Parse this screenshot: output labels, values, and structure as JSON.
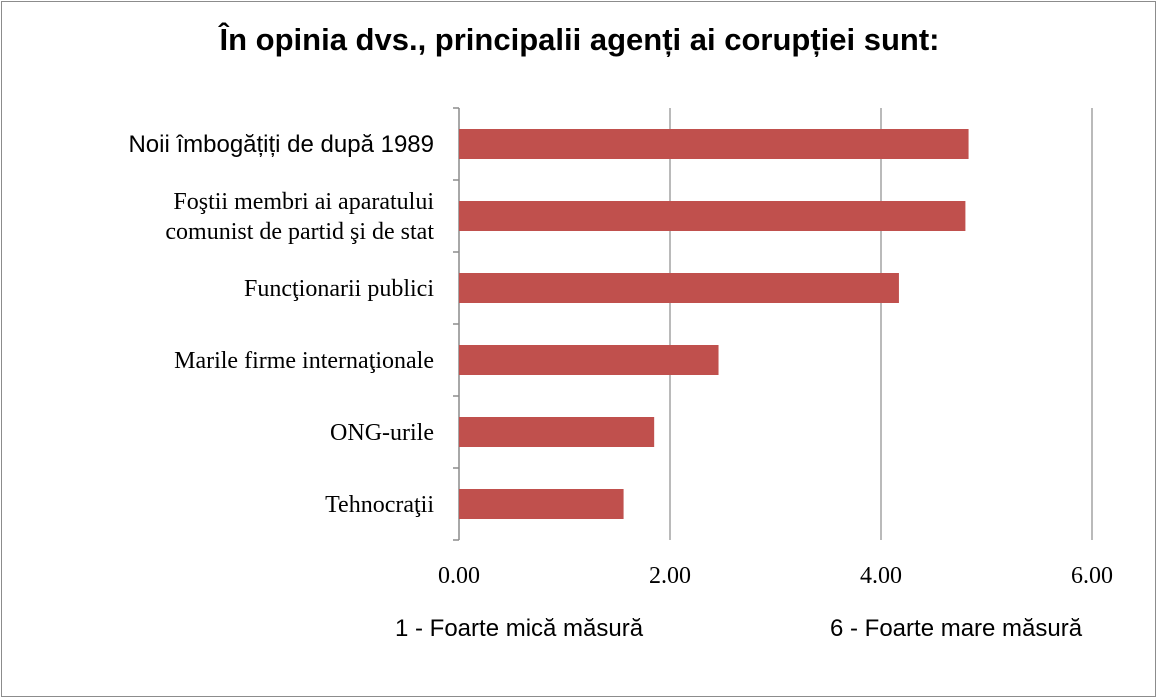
{
  "chart_data": {
    "type": "bar",
    "orientation": "horizontal",
    "title": "În opinia dvs., principalii agenți ai corupției sunt:",
    "categories": [
      [
        "Noii îmbogățiți de după 1989"
      ],
      [
        "Foştii membri ai aparatului",
        "comunist de partid şi de stat"
      ],
      [
        "Funcţionarii publici"
      ],
      [
        "Marile firme internaţionale"
      ],
      [
        "ONG-urile"
      ],
      [
        "Tehnocraţii"
      ]
    ],
    "values": [
      4.83,
      4.8,
      4.17,
      2.46,
      1.85,
      1.56
    ],
    "xlim": [
      0,
      6
    ],
    "xticks": [
      "0.00",
      "2.00",
      "4.00",
      "6.00"
    ],
    "grid": "vertical",
    "bar_color": "#c0504d",
    "scale_notes": {
      "left": "1 - Foarte mică măsură",
      "right": "6 - Foarte mare măsură"
    }
  }
}
